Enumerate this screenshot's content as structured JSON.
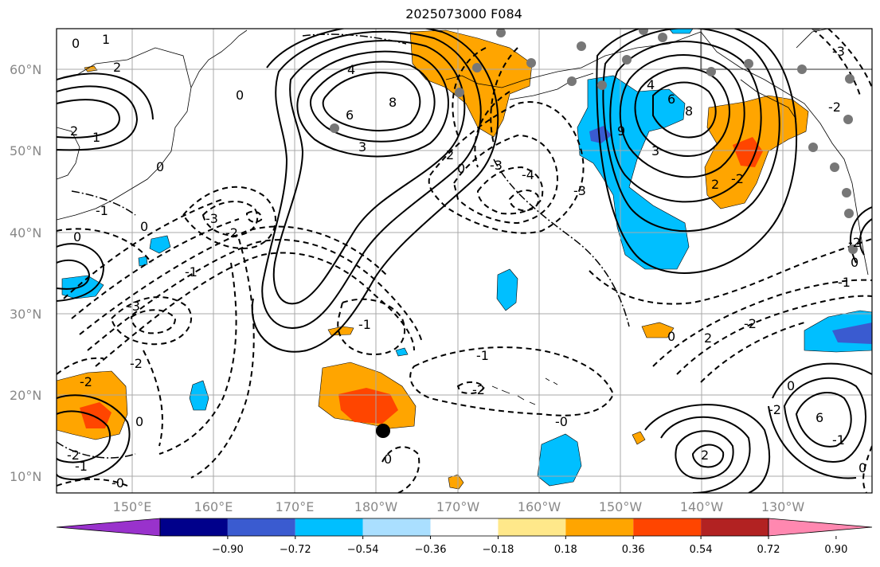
{
  "title": "2025073000 F084",
  "map": {
    "lat_labels": [
      {
        "text": "60°N",
        "lat": 60
      },
      {
        "text": "50°N",
        "lat": 50
      },
      {
        "text": "40°N",
        "lat": 40
      },
      {
        "text": "30°N",
        "lat": 30
      },
      {
        "text": "20°N",
        "lat": 20
      },
      {
        "text": "10°N",
        "lat": 10
      }
    ],
    "lon_labels": [
      {
        "text": "150°E",
        "lon": 150
      },
      {
        "text": "160°E",
        "lon": 160
      },
      {
        "text": "170°E",
        "lon": 170
      },
      {
        "text": "180°W",
        "lon": 180
      },
      {
        "text": "170°W",
        "lon": 190
      },
      {
        "text": "160°W",
        "lon": 200
      },
      {
        "text": "150°W",
        "lon": 210
      },
      {
        "text": "140°W",
        "lon": 220
      },
      {
        "text": "130°W",
        "lon": 230
      }
    ],
    "contour_labels": [
      "0",
      "1",
      "2",
      "4",
      "6",
      "8",
      "3",
      "-1",
      "-2",
      "-3",
      "-4",
      "2",
      "0",
      "-1",
      "-2"
    ],
    "marker": {
      "lat": 15.7,
      "lon": 180.6
    }
  },
  "colorbar": {
    "levels": [
      "−0.90",
      "−0.72",
      "−0.54",
      "−0.36",
      "−0.18",
      "0.18",
      "0.36",
      "0.54",
      "0.72",
      "0.90"
    ],
    "colors": [
      "#9932cc",
      "#00008b",
      "#3a5bd0",
      "#00bfff",
      "#aadfff",
      "#ffffff",
      "#ffe88a",
      "#ffa500",
      "#ff4500",
      "#b22222",
      "#ff88b0"
    ]
  }
}
